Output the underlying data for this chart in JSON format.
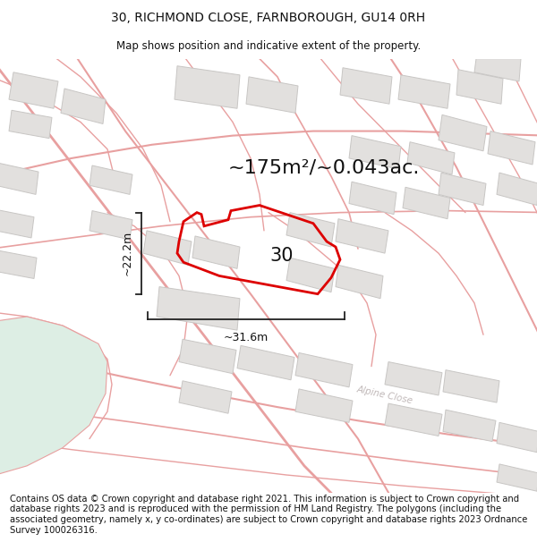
{
  "title": "30, RICHMOND CLOSE, FARNBOROUGH, GU14 0RH",
  "subtitle": "Map shows position and indicative extent of the property.",
  "area_text": "~175m²/~0.043ac.",
  "dim_width": "~31.6m",
  "dim_height": "~22.2m",
  "property_number": "30",
  "footer": "Contains OS data © Crown copyright and database right 2021. This information is subject to Crown copyright and database rights 2023 and is reproduced with the permission of HM Land Registry. The polygons (including the associated geometry, namely x, y co-ordinates) are subject to Crown copyright and database rights 2023 Ordnance Survey 100026316.",
  "background_color": "#ffffff",
  "map_bg_color": "#f7f5f3",
  "property_color": "#dd0000",
  "road_color": "#e8a0a0",
  "road_color2": "#d4b8b8",
  "building_color": "#e2e0de",
  "building_edge_color": "#c8c6c4",
  "green_color": "#d8ede0",
  "alpine_close_text": "Alpine Close",
  "title_fontsize": 10,
  "subtitle_fontsize": 8.5,
  "footer_fontsize": 7.2,
  "area_fontsize": 16,
  "dim_fontsize": 9,
  "num_fontsize": 15
}
